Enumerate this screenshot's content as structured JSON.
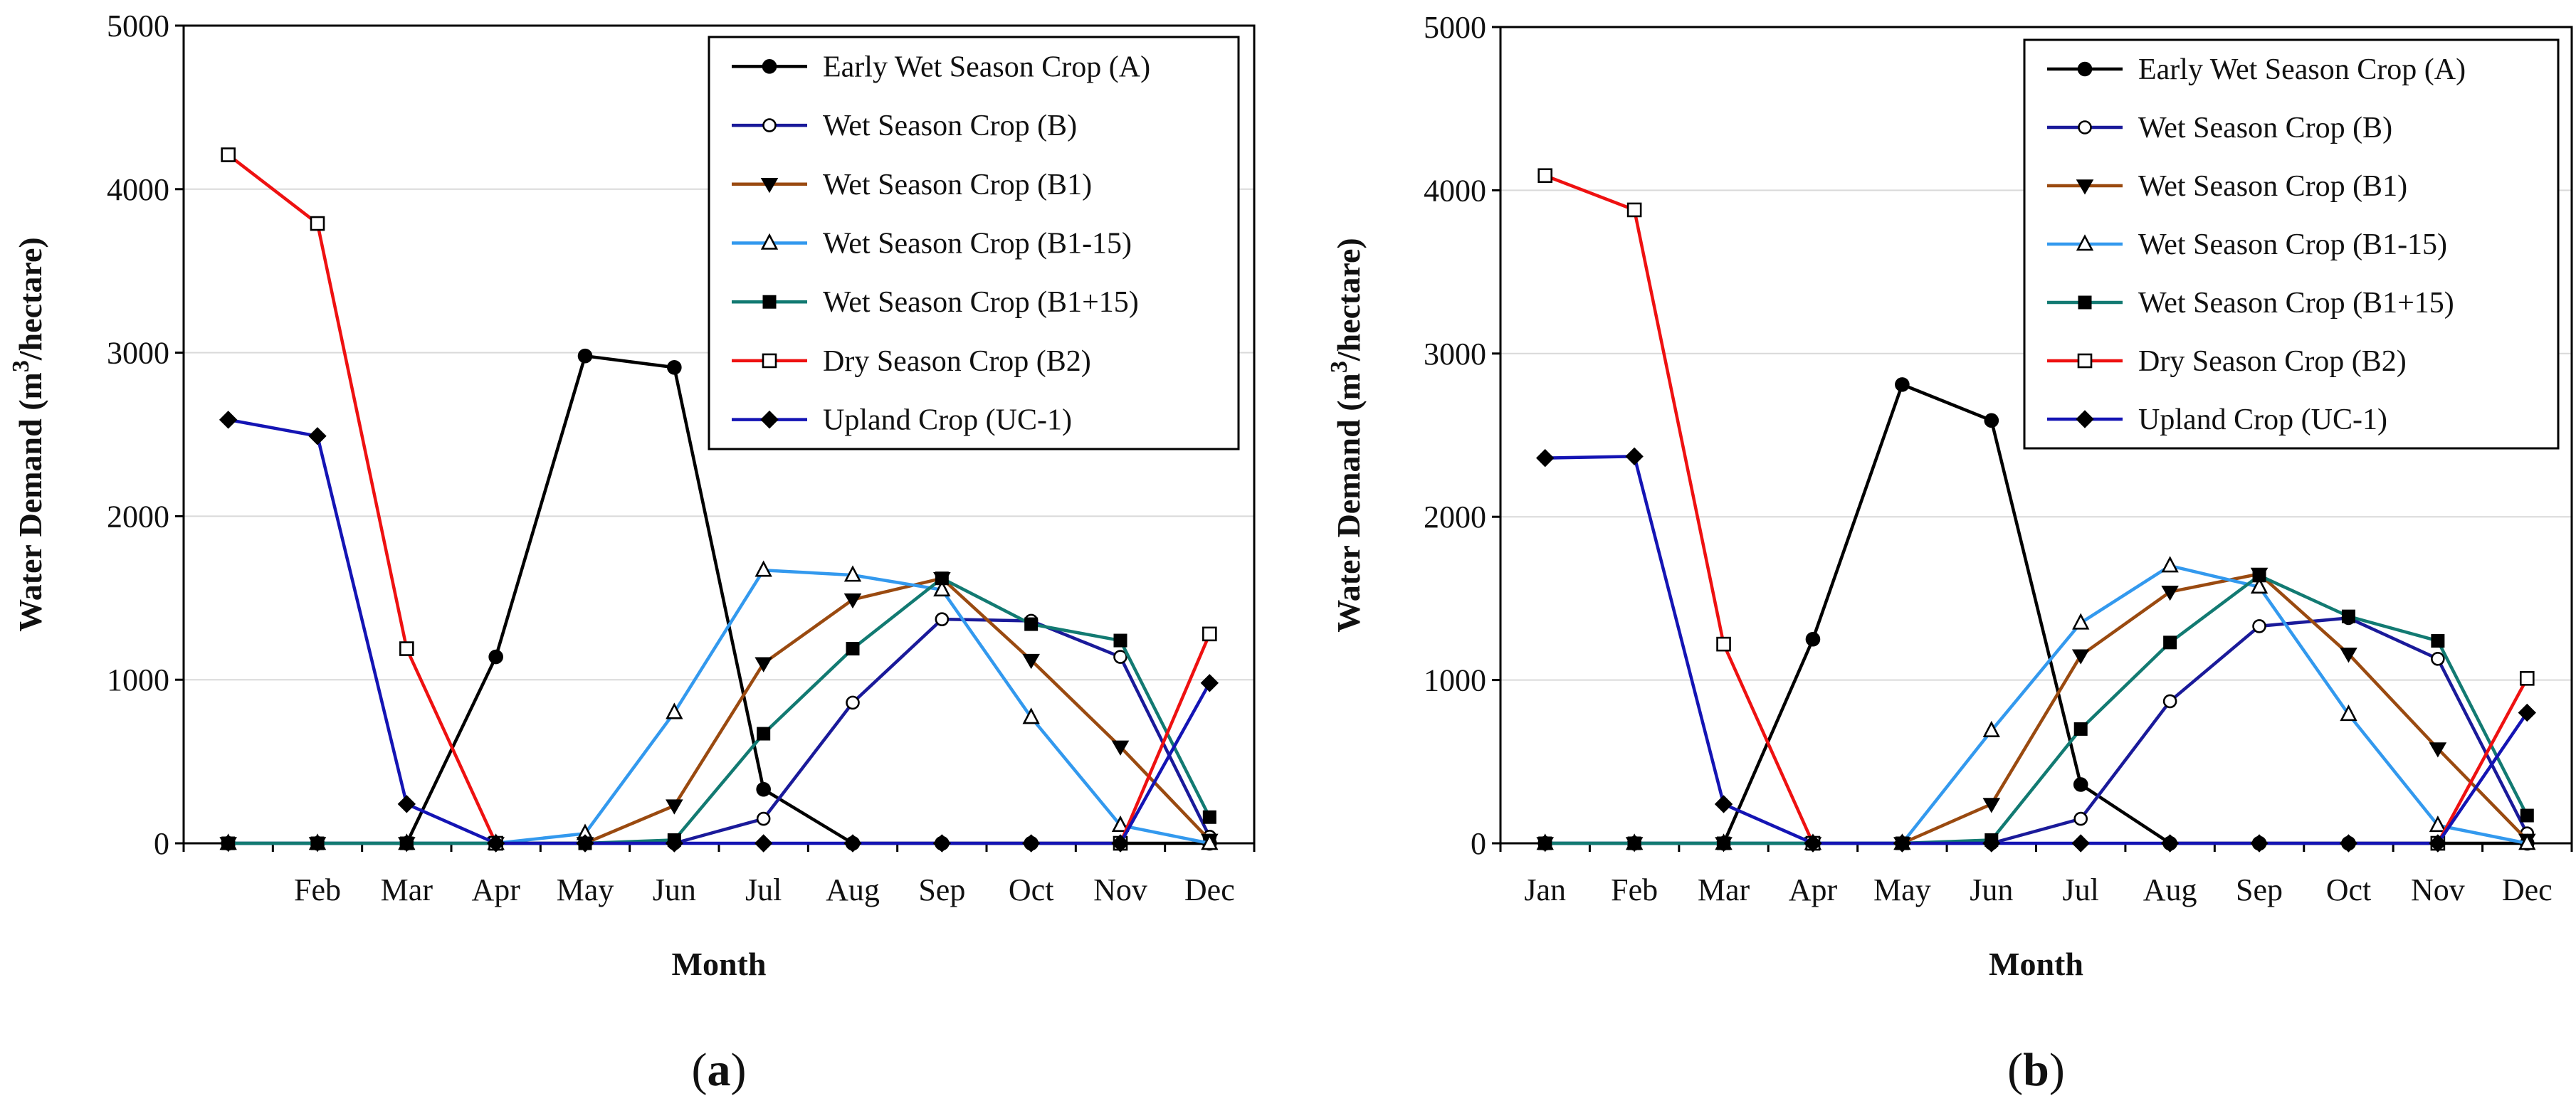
{
  "chart_data": [
    {
      "type": "line",
      "panel_label": "a",
      "xlabel": "Month",
      "ylabel_main": "Water Demand (m",
      "ylabel_sup": "3",
      "ylabel_rest": "/hectare)",
      "ylim": [
        0,
        5000
      ],
      "yticks": [
        0,
        1000,
        2000,
        3000,
        4000,
        5000
      ],
      "grid": "horizontal",
      "legend_position": "top-right",
      "categories": [
        "",
        "Feb",
        "Mar",
        "Apr",
        "May",
        "Jun",
        "Jul",
        "Aug",
        "Sep",
        "Oct",
        "Nov",
        "Dec"
      ],
      "series": [
        {
          "name": "Early Wet Season Crop (A)",
          "color": "#000000",
          "marker": "filled-circle",
          "values": [
            0,
            0,
            0,
            1140,
            2980,
            2910,
            330,
            0,
            0,
            0,
            0,
            0
          ]
        },
        {
          "name": "Wet Season Crop (B)",
          "color": "#1a1a9a",
          "marker": "open-circle",
          "values": [
            0,
            0,
            0,
            0,
            0,
            0,
            150,
            860,
            1370,
            1360,
            1140,
            40
          ]
        },
        {
          "name": "Wet Season Crop (B1)",
          "color": "#9a4a10",
          "marker": "filled-triangle-down",
          "values": [
            0,
            0,
            0,
            0,
            0,
            230,
            1100,
            1490,
            1620,
            1120,
            590,
            20
          ]
        },
        {
          "name": "Wet Season Crop (B1-15)",
          "color": "#3399ee",
          "marker": "open-triangle-up",
          "values": [
            0,
            0,
            0,
            0,
            60,
            800,
            1670,
            1640,
            1550,
            770,
            110,
            0
          ]
        },
        {
          "name": "Wet Season Crop (B1+15)",
          "color": "#127a72",
          "marker": "filled-square",
          "values": [
            0,
            0,
            0,
            0,
            0,
            20,
            670,
            1190,
            1620,
            1340,
            1240,
            160
          ]
        },
        {
          "name": "Dry Season Crop (B2)",
          "color": "#ee1111",
          "marker": "open-square",
          "values": [
            4210,
            3790,
            1190,
            0,
            null,
            null,
            null,
            null,
            null,
            null,
            0,
            1280
          ]
        },
        {
          "name": "Upland Crop (UC-1)",
          "color": "#1414b4",
          "marker": "filled-diamond",
          "values": [
            2590,
            2490,
            240,
            0,
            0,
            0,
            0,
            0,
            0,
            0,
            0,
            980
          ]
        }
      ]
    },
    {
      "type": "line",
      "panel_label": "b",
      "xlabel": "Month",
      "ylabel_main": "Water Demand (m",
      "ylabel_sup": "3",
      "ylabel_rest": "/hectare)",
      "ylim": [
        0,
        5000
      ],
      "yticks": [
        0,
        1000,
        2000,
        3000,
        4000,
        5000
      ],
      "grid": "horizontal",
      "legend_position": "top-right",
      "categories": [
        "Jan",
        "Feb",
        "Mar",
        "Apr",
        "May",
        "Jun",
        "Jul",
        "Aug",
        "Sep",
        "Oct",
        "Nov",
        "Dec"
      ],
      "series": [
        {
          "name": "Early Wet Season Crop (A)",
          "color": "#000000",
          "marker": "filled-circle",
          "values": [
            0,
            0,
            0,
            1250,
            2810,
            2590,
            360,
            0,
            0,
            0,
            0,
            0
          ]
        },
        {
          "name": "Wet Season Crop (B)",
          "color": "#1a1a9a",
          "marker": "open-circle",
          "values": [
            0,
            0,
            0,
            0,
            0,
            0,
            150,
            870,
            1330,
            1380,
            1130,
            60
          ]
        },
        {
          "name": "Wet Season Crop (B1)",
          "color": "#9a4a10",
          "marker": "filled-triangle-down",
          "values": [
            0,
            0,
            0,
            0,
            0,
            240,
            1150,
            1540,
            1650,
            1160,
            580,
            20
          ]
        },
        {
          "name": "Wet Season Crop (B1-15)",
          "color": "#3399ee",
          "marker": "open-triangle-up",
          "values": [
            0,
            0,
            0,
            0,
            0,
            690,
            1350,
            1700,
            1570,
            790,
            110,
            0
          ]
        },
        {
          "name": "Wet Season Crop (B1+15)",
          "color": "#127a72",
          "marker": "filled-square",
          "values": [
            0,
            0,
            0,
            0,
            0,
            20,
            700,
            1230,
            1640,
            1390,
            1240,
            170
          ]
        },
        {
          "name": "Dry Season Crop (B2)",
          "color": "#ee1111",
          "marker": "open-square",
          "values": [
            4090,
            3880,
            1220,
            0,
            null,
            null,
            null,
            null,
            null,
            null,
            0,
            1010
          ]
        },
        {
          "name": "Upland Crop (UC-1)",
          "color": "#1414b4",
          "marker": "filled-diamond",
          "values": [
            2360,
            2370,
            240,
            0,
            0,
            0,
            0,
            0,
            0,
            0,
            0,
            800
          ]
        }
      ]
    }
  ]
}
